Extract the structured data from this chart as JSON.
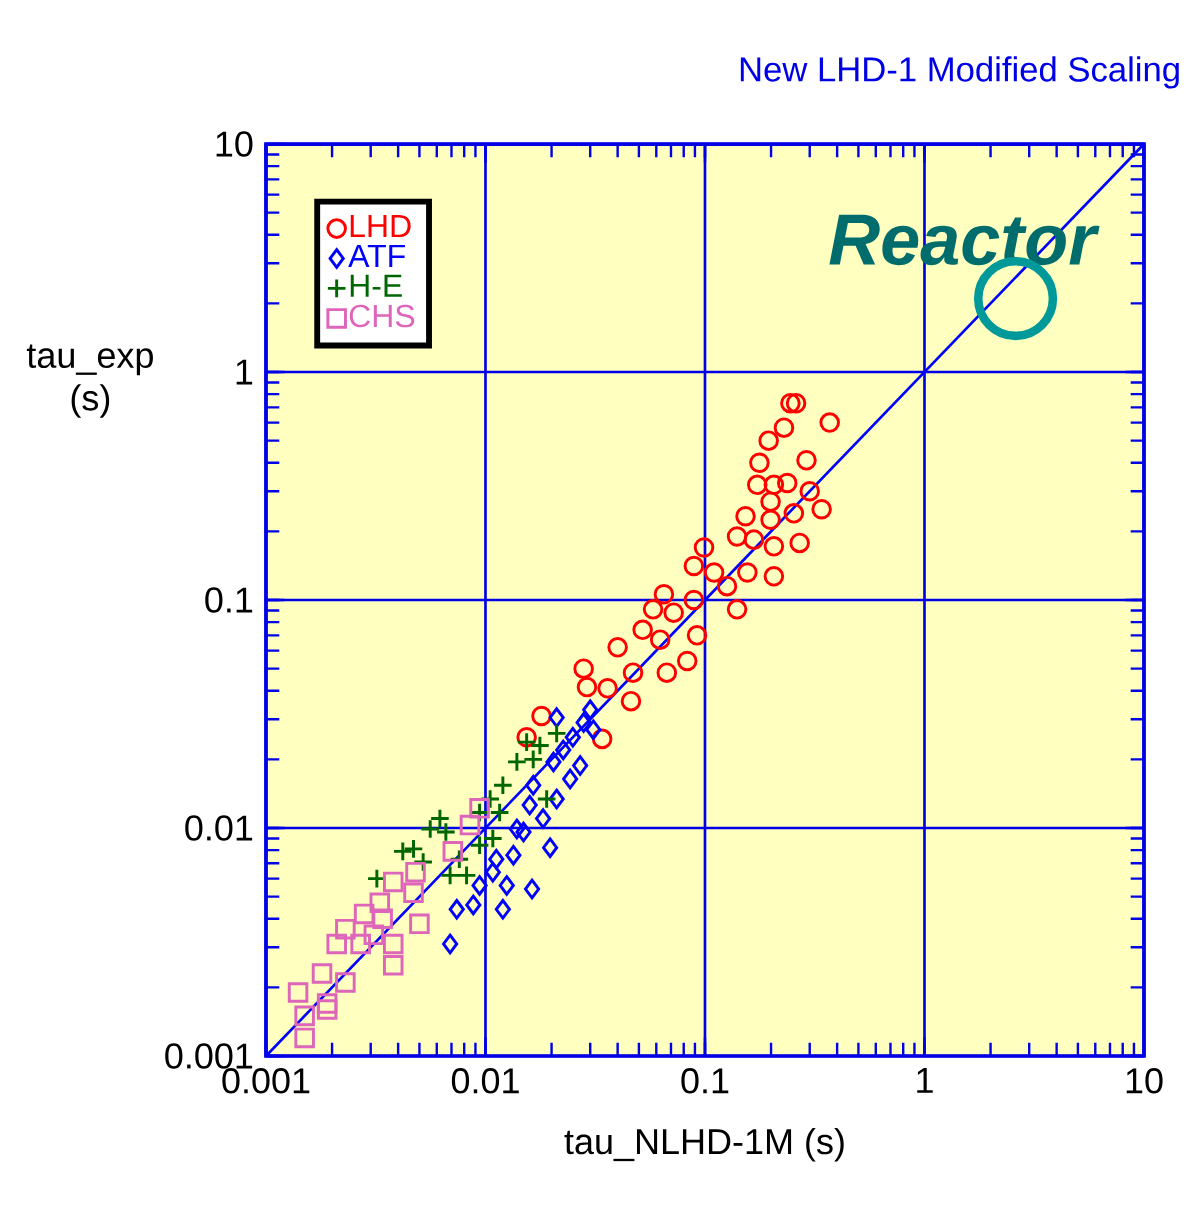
{
  "chart_data": {
    "type": "scatter",
    "title": "New LHD-1 Modified Scaling",
    "xlabel": "tau_NLHD-1M (s)",
    "ylabel": "tau_exp (s)",
    "log": "xy",
    "xlim": [
      0.001,
      10
    ],
    "ylim": [
      0.001,
      10
    ],
    "xticks": [
      0.001,
      0.01,
      0.1,
      1,
      10
    ],
    "yticks": [
      0.001,
      0.01,
      0.1,
      1,
      10
    ],
    "grid": true,
    "legend": "top left",
    "annotations": [
      {
        "text": "Reactor",
        "x": 2.6,
        "y": 2.1
      }
    ],
    "series": [
      {
        "name": "LHD",
        "color": "#ff0000",
        "marker": "circle",
        "x": [
          0.245,
          0.26,
          0.37,
          0.229,
          0.195,
          0.29,
          0.177,
          0.237,
          0.206,
          0.173,
          0.3,
          0.34,
          0.199,
          0.153,
          0.254,
          0.199,
          0.27,
          0.167,
          0.14,
          0.099,
          0.206,
          0.11,
          0.089,
          0.156,
          0.206,
          0.126,
          0.065,
          0.058,
          0.072,
          0.14,
          0.089,
          0.052,
          0.0625,
          0.092,
          0.04,
          0.083,
          0.067,
          0.028,
          0.047,
          0.029,
          0.036,
          0.046,
          0.018,
          0.0154,
          0.034
        ],
        "values": [
          0.73,
          0.73,
          0.6,
          0.57,
          0.5,
          0.41,
          0.4,
          0.326,
          0.32,
          0.32,
          0.3,
          0.25,
          0.27,
          0.233,
          0.24,
          0.225,
          0.178,
          0.184,
          0.19,
          0.17,
          0.172,
          0.132,
          0.141,
          0.132,
          0.127,
          0.115,
          0.106,
          0.091,
          0.088,
          0.091,
          0.1,
          0.074,
          0.067,
          0.07,
          0.062,
          0.054,
          0.048,
          0.05,
          0.048,
          0.0415,
          0.041,
          0.036,
          0.031,
          0.025,
          0.0246
        ]
      },
      {
        "name": "ATF",
        "color": "#0000ff",
        "marker": "diamond",
        "x": [
          0.0211,
          0.03,
          0.028,
          0.031,
          0.025,
          0.0226,
          0.027,
          0.0204,
          0.0243,
          0.0211,
          0.0183,
          0.0159,
          0.0197,
          0.0139,
          0.0134,
          0.0112,
          0.0163,
          0.0125,
          0.0094,
          0.012,
          0.0088,
          0.0074,
          0.0069,
          0.0108,
          0.0149,
          0.0165
        ],
        "values": [
          0.0305,
          0.033,
          0.029,
          0.027,
          0.025,
          0.022,
          0.0188,
          0.0195,
          0.0164,
          0.0134,
          0.011,
          0.0126,
          0.0082,
          0.0099,
          0.0076,
          0.0073,
          0.0054,
          0.0056,
          0.0056,
          0.0044,
          0.0046,
          0.0044,
          0.0031,
          0.0064,
          0.0096,
          0.0154
        ]
      },
      {
        "name": "H-E",
        "color": "#006600",
        "marker": "cross",
        "x": [
          0.0211,
          0.0177,
          0.0154,
          0.0139,
          0.0165,
          0.012,
          0.0105,
          0.0116,
          0.0094,
          0.0062,
          0.0056,
          0.0066,
          0.0047,
          0.0042,
          0.0052,
          0.0032,
          0.0076,
          0.0082,
          0.0069,
          0.0094,
          0.0108,
          0.019
        ],
        "values": [
          0.026,
          0.023,
          0.0238,
          0.0195,
          0.02,
          0.0154,
          0.0134,
          0.0117,
          0.0117,
          0.011,
          0.0099,
          0.0096,
          0.0081,
          0.0079,
          0.0071,
          0.006,
          0.0073,
          0.0062,
          0.0062,
          0.0084,
          0.009,
          0.0134
        ]
      },
      {
        "name": "CHS",
        "color": "#dd66bb",
        "marker": "square",
        "x": [
          0.0094,
          0.0085,
          0.0071,
          0.0048,
          0.0038,
          0.0047,
          0.0033,
          0.0028,
          0.0034,
          0.005,
          0.0023,
          0.0021,
          0.0027,
          0.0038,
          0.0018,
          0.0023,
          0.0014,
          0.0019,
          0.0015,
          0.0019,
          0.0038,
          0.0015,
          0.0031
        ],
        "values": [
          0.0122,
          0.0103,
          0.0079,
          0.0064,
          0.0058,
          0.0052,
          0.0047,
          0.0042,
          0.004,
          0.0038,
          0.0036,
          0.0031,
          0.0031,
          0.0031,
          0.0023,
          0.0021,
          0.0019,
          0.0017,
          0.0015,
          0.0016,
          0.0025,
          0.0012,
          0.0034
        ]
      },
      {
        "type": "line",
        "color": "#0000ff",
        "x": [
          0.001,
          10
        ],
        "values": [
          0.001,
          10
        ]
      },
      {
        "color": "#009999",
        "marker": "circle",
        "x": [
          2.6
        ],
        "values": [
          2.1
        ]
      }
    ]
  }
}
